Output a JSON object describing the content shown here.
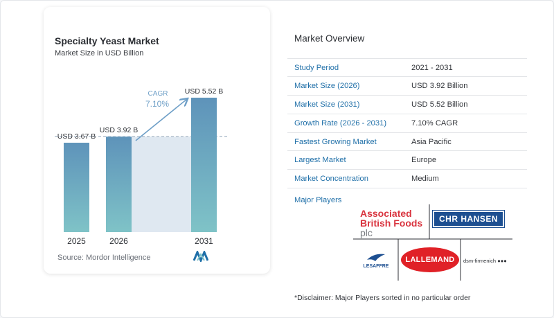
{
  "chart_data": {
    "type": "bar",
    "title": "Specialty Yeast Market",
    "subtitle": "Market Size in USD Billion",
    "categories": [
      "2025",
      "2026",
      "2031"
    ],
    "values": [
      3.67,
      3.92,
      5.52
    ],
    "value_labels": [
      "USD 3.67 B",
      "USD 3.92 B",
      "USD 5.52 B"
    ],
    "ylim": [
      0,
      5.52
    ],
    "grid": false,
    "reference_line": 3.92,
    "cagr_label": "CAGR",
    "cagr_value": "7.10%",
    "colors": {
      "bar_top": "#5e93ba",
      "bar_bottom": "#7fc3c7",
      "shade": "#dfe8f1",
      "arrow": "#6e9fc7",
      "cagr_text": "#6e9fc7"
    }
  },
  "source_text": "Source: Mordor Intelligence",
  "overview": {
    "title": "Market Overview",
    "rows": [
      {
        "label": "Study Period",
        "value": "2021 - 2031"
      },
      {
        "label": "Market Size (2026)",
        "value": "USD 3.92 Billion"
      },
      {
        "label": "Market Size (2031)",
        "value": "USD 5.52 Billion"
      },
      {
        "label": "Growth Rate (2026 - 2031)",
        "value": "7.10% CAGR"
      },
      {
        "label": "Fastest Growing Market",
        "value": "Asia Pacific"
      },
      {
        "label": "Largest Market",
        "value": "Europe"
      },
      {
        "label": "Market Concentration",
        "value": "Medium"
      }
    ]
  },
  "major_players": {
    "label": "Major Players",
    "logos": {
      "abf_line1": "Associated",
      "abf_line2": "British Foods",
      "abf_line3": "plc",
      "chr": "CHR HANSEN",
      "lallemand": "LALLEMAND",
      "lesaffre": "LESAFFRE",
      "dsm": "dsm-firmenich"
    }
  },
  "disclaimer": "*Disclaimer: Major Players sorted in no particular order"
}
